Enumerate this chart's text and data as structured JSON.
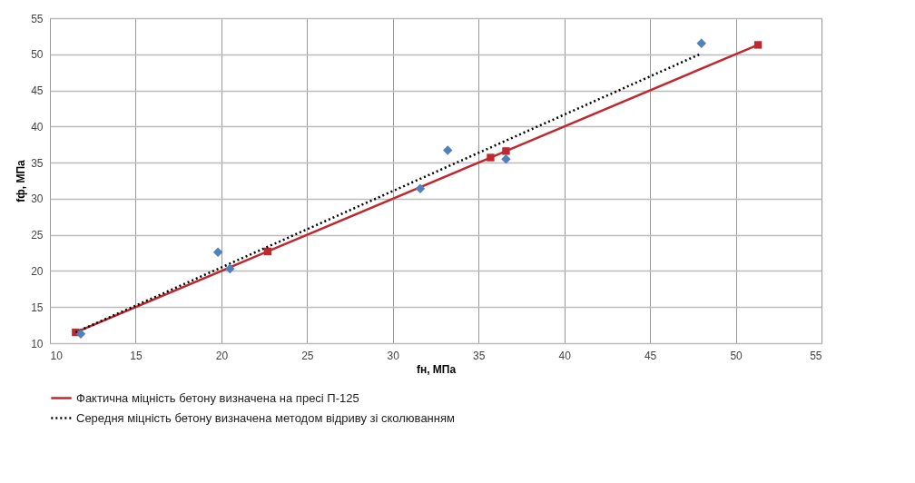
{
  "chart_data": {
    "type": "line",
    "xlabel": "fн, МПа",
    "ylabel": "fф, МПа",
    "xlim": [
      10,
      55
    ],
    "ylim": [
      10,
      55
    ],
    "xticks": [
      10,
      15,
      20,
      25,
      30,
      35,
      40,
      45,
      50,
      55
    ],
    "yticks": [
      10,
      15,
      20,
      25,
      30,
      35,
      40,
      45,
      50,
      55
    ],
    "grid": true,
    "legend": "bottom",
    "series": [
      {
        "name": "Фактична міцність бетону визначена на пресі П-125",
        "color": "#c0282e",
        "marker": "square",
        "line_style": "solid",
        "x": [
          11.5,
          22.7,
          35.7,
          36.6,
          51.3
        ],
        "values": [
          11.5,
          22.7,
          35.7,
          36.6,
          51.3
        ]
      },
      {
        "name": "Середня міцність бетону визначена методом відриву зі сколюванням",
        "color": "#000000",
        "marker": "none",
        "line_style": "dotted",
        "x": [
          11.5,
          47.9
        ],
        "values": [
          11.5,
          50.0
        ]
      },
      {
        "type": "scatter",
        "color": "#4f81bd",
        "marker": "diamond",
        "x": [
          11.8,
          19.8,
          20.5,
          31.6,
          33.2,
          36.6,
          48.0
        ],
        "values": [
          11.3,
          22.6,
          20.3,
          31.4,
          36.7,
          35.5,
          51.5
        ]
      }
    ]
  }
}
